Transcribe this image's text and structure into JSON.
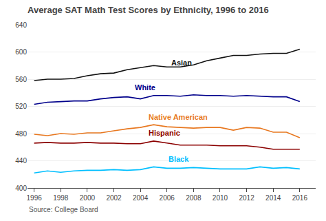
{
  "chart_data": {
    "type": "line",
    "title": "Average SAT Math Test Scores by Ethnicity, 1996 to 2016",
    "source": "Source: College Board",
    "x": [
      1996,
      1997,
      1998,
      1999,
      2000,
      2001,
      2002,
      2003,
      2004,
      2005,
      2006,
      2007,
      2008,
      2009,
      2010,
      2011,
      2012,
      2013,
      2014,
      2015,
      2016
    ],
    "series": [
      {
        "name": "Asian",
        "color": "#111111",
        "values": [
          558,
          560,
          560,
          561,
          565,
          568,
          569,
          574,
          577,
          580,
          578,
          578,
          581,
          587,
          591,
          595,
          595,
          597,
          598,
          598,
          604
        ]
      },
      {
        "name": "White",
        "color": "#00008B",
        "values": [
          523,
          526,
          527,
          528,
          528,
          531,
          533,
          534,
          531,
          536,
          536,
          535,
          537,
          536,
          536,
          535,
          536,
          535,
          534,
          534,
          527
        ]
      },
      {
        "name": "Native American",
        "color": "#E87820",
        "values": [
          479,
          477,
          480,
          479,
          481,
          481,
          484,
          487,
          489,
          493,
          490,
          489,
          488,
          489,
          489,
          485,
          489,
          488,
          482,
          482,
          474
        ]
      },
      {
        "name": "Hispanic",
        "color": "#8B0000",
        "values": [
          466,
          467,
          466,
          466,
          467,
          466,
          466,
          465,
          465,
          469,
          466,
          463,
          463,
          463,
          462,
          462,
          462,
          460,
          457,
          457,
          457
        ]
      },
      {
        "name": "Black",
        "color": "#00BFFF",
        "values": [
          422,
          425,
          423,
          425,
          426,
          426,
          427,
          426,
          427,
          431,
          429,
          429,
          430,
          429,
          428,
          428,
          428,
          431,
          429,
          430,
          428
        ]
      }
    ],
    "annotations": [
      {
        "text": "Asian",
        "x": 2006.2,
        "y": 584,
        "color": "#111111"
      },
      {
        "text": "White",
        "x": 2003.5,
        "y": 548,
        "color": "#00008B"
      },
      {
        "text": "Native American",
        "x": 2004.5,
        "y": 504,
        "color": "#E87820"
      },
      {
        "text": "Hispanic",
        "x": 2004.5,
        "y": 481,
        "color": "#8B0000"
      },
      {
        "text": "Black",
        "x": 2006.0,
        "y": 443,
        "color": "#00BFFF"
      }
    ],
    "xlim": [
      1995.5,
      2017.2
    ],
    "xticks": [
      1996,
      1998,
      2000,
      2002,
      2004,
      2006,
      2008,
      2010,
      2012,
      2014,
      2016
    ],
    "ylim": [
      400,
      640
    ],
    "yticks": [
      400,
      440,
      480,
      520,
      560,
      600,
      640
    ],
    "grid": true
  }
}
